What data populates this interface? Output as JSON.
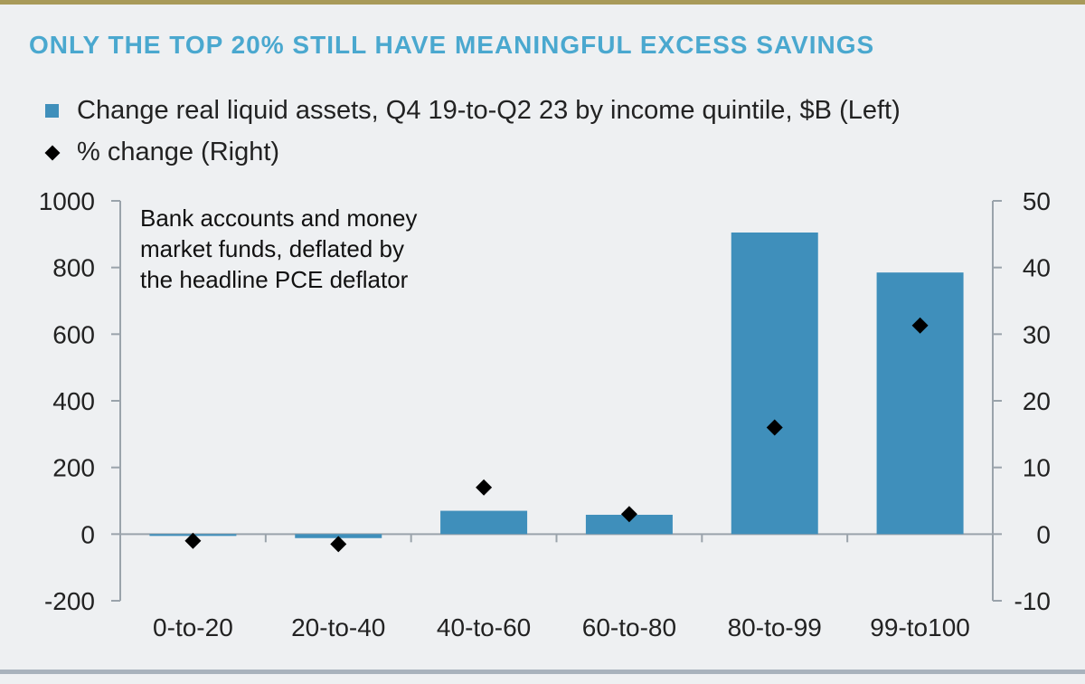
{
  "title": "ONLY THE TOP 20% STILL HAVE MEANINGFUL EXCESS SAVINGS",
  "legend": {
    "bar_label": "Change real liquid assets, Q4 19-to-Q2 23 by income quintile, $B (Left)",
    "diamond_label": "% change (Right)"
  },
  "annotation": [
    "Bank accounts and money",
    "market funds, deflated by",
    "the headline PCE deflator"
  ],
  "colors": {
    "bar": "#3f8fbb",
    "title": "#4aa8cf",
    "marker": "#000000"
  },
  "chart_data": {
    "type": "bar",
    "categories": [
      "0-to-20",
      "20-to-40",
      "40-to-60",
      "60-to-80",
      "80-to-99",
      "99-to100"
    ],
    "series": [
      {
        "name": "Change real liquid assets, Q4 19-to-Q2 23 by income quintile, $B (Left)",
        "type": "bar",
        "axis": "left",
        "values": [
          -5,
          -12,
          70,
          58,
          905,
          785
        ]
      },
      {
        "name": "% change (Right)",
        "type": "scatter",
        "axis": "right",
        "marker": "diamond",
        "values": [
          -1,
          -1.5,
          7,
          3,
          16,
          31.3
        ]
      }
    ],
    "left_axis": {
      "ylim": [
        -200,
        1000
      ],
      "ticks": [
        "1000",
        "800",
        "600",
        "400",
        "200",
        "0",
        "-200"
      ]
    },
    "right_axis": {
      "ylim": [
        -10,
        50
      ],
      "ticks": [
        "50",
        "40",
        "30",
        "20",
        "10",
        "0",
        "-10"
      ]
    },
    "legend_position": "top-left",
    "grid": false
  }
}
